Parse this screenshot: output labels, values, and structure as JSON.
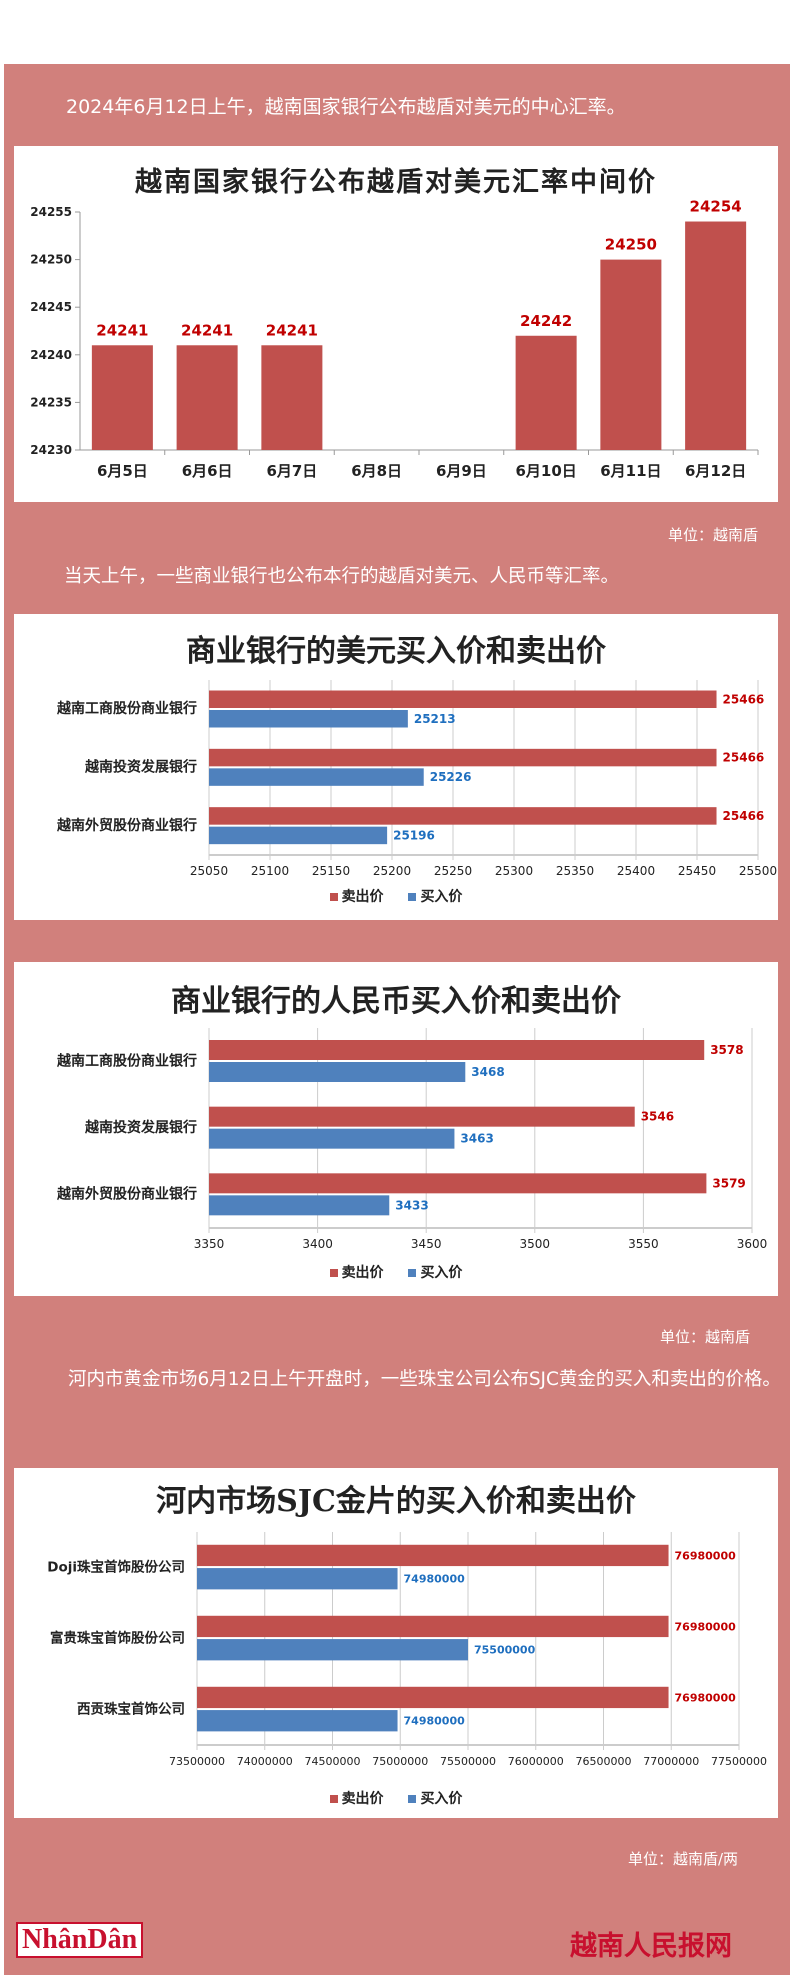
{
  "intro1": "2024年6月12日上午，越南国家银行公布越盾对美元的中心汇率。",
  "intro2": "当天上午，一些商业银行也公布本行的越盾对美元、人民币等汇率。",
  "intro3": "河内市黄金市场6月12日上午开盘时，一些珠宝公司公布SJC黄金的买入和卖出的价格。",
  "unit1": "单位：越南盾",
  "unit2": "单位：越南盾",
  "unit3": "单位：越南盾/两",
  "footer": {
    "logo": "NhânDân",
    "site": "越南人民报网"
  },
  "colors": {
    "sell": "#c0504d",
    "buy": "#4f81bd",
    "background": "#d1807c"
  },
  "chart_data": [
    {
      "type": "bar",
      "title": "越南国家银行公布越盾对美元汇率中间价",
      "categories": [
        "6月5日",
        "6月6日",
        "6月7日",
        "6月8日",
        "6月9日",
        "6月10日",
        "6月11日",
        "6月12日"
      ],
      "values": [
        24241,
        24241,
        24241,
        null,
        null,
        24242,
        24250,
        24254
      ],
      "ylim": [
        24230,
        24255
      ],
      "yticks": [
        24230,
        24235,
        24240,
        24245,
        24250,
        24255
      ],
      "grid": false
    },
    {
      "type": "bar",
      "orientation": "horizontal",
      "title": "商业银行的美元买入价和卖出价",
      "categories": [
        "越南工商股份商业银行",
        "越南投资发展银行",
        "越南外贸股份商业银行"
      ],
      "series": [
        {
          "name": "卖出价",
          "values": [
            25466,
            25466,
            25466
          ]
        },
        {
          "name": "买入价",
          "values": [
            25213,
            25226,
            25196
          ]
        }
      ],
      "xlim": [
        25050,
        25500
      ],
      "xticks": [
        25050,
        25100,
        25150,
        25200,
        25250,
        25300,
        25350,
        25400,
        25450,
        25500
      ],
      "legend": "bottom"
    },
    {
      "type": "bar",
      "orientation": "horizontal",
      "title": "商业银行的人民币买入价和卖出价",
      "categories": [
        "越南工商股份商业银行",
        "越南投资发展银行",
        "越南外贸股份商业银行"
      ],
      "series": [
        {
          "name": "卖出价",
          "values": [
            3578,
            3546,
            3579
          ]
        },
        {
          "name": "买入价",
          "values": [
            3468,
            3463,
            3433
          ]
        }
      ],
      "xlim": [
        3350,
        3600
      ],
      "xticks": [
        3350,
        3400,
        3450,
        3500,
        3550,
        3600
      ],
      "legend": "bottom"
    },
    {
      "type": "bar",
      "orientation": "horizontal",
      "title": "河内市场SJC金片的买入价和卖出价",
      "categories": [
        "Doji珠宝首饰股份公司",
        "富贵珠宝首饰股份公司",
        "西贡珠宝首饰公司"
      ],
      "series": [
        {
          "name": "卖出价",
          "values": [
            76980000,
            76980000,
            76980000
          ]
        },
        {
          "name": "买入价",
          "values": [
            74980000,
            75500000,
            74980000
          ]
        }
      ],
      "xlim": [
        73500000,
        77500000
      ],
      "xticks": [
        73500000,
        74000000,
        74500000,
        75000000,
        75500000,
        76000000,
        76500000,
        77000000,
        77500000
      ],
      "legend": "bottom"
    }
  ]
}
